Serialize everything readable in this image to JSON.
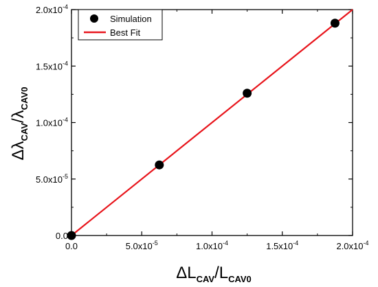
{
  "chart_data": {
    "type": "scatter",
    "xlabel": {
      "prefix": "ΔL",
      "sub1": "CAV",
      "mid": "/L",
      "sub2": "CAV0"
    },
    "ylabel": {
      "prefix": "Δλ",
      "sub1": "CAV",
      "mid": "/λ",
      "sub2": "CAV0"
    },
    "xlim": [
      0,
      0.0002
    ],
    "ylim": [
      0,
      0.0002
    ],
    "x_ticks": [
      {
        "value": 0,
        "mant": "0.0",
        "exp": ""
      },
      {
        "value": 5e-05,
        "mant": "5.0x10",
        "exp": "-5"
      },
      {
        "value": 0.0001,
        "mant": "1.0x10",
        "exp": "-4"
      },
      {
        "value": 0.00015,
        "mant": "1.5x10",
        "exp": "-4"
      },
      {
        "value": 0.0002,
        "mant": "2.0x10",
        "exp": "-4"
      }
    ],
    "y_ticks": [
      {
        "value": 0,
        "mant": "0.0",
        "exp": ""
      },
      {
        "value": 5e-05,
        "mant": "5.0x10",
        "exp": "-5"
      },
      {
        "value": 0.0001,
        "mant": "1.0x10",
        "exp": "-4"
      },
      {
        "value": 0.00015,
        "mant": "1.5x10",
        "exp": "-4"
      },
      {
        "value": 0.0002,
        "mant": "2.0x10",
        "exp": "-4"
      }
    ],
    "series": [
      {
        "name": "Simulation",
        "kind": "scatter",
        "color": "#000000",
        "x": [
          0,
          6.25e-05,
          0.000125,
          0.0001875
        ],
        "y": [
          0,
          6.25e-05,
          0.000126,
          0.000188
        ]
      },
      {
        "name": "Best Fit",
        "kind": "line",
        "color": "#e8141b",
        "x": [
          0,
          0.0002
        ],
        "y": [
          0,
          0.0002
        ]
      }
    ],
    "legend": {
      "position": "top-left"
    },
    "grid": false
  }
}
